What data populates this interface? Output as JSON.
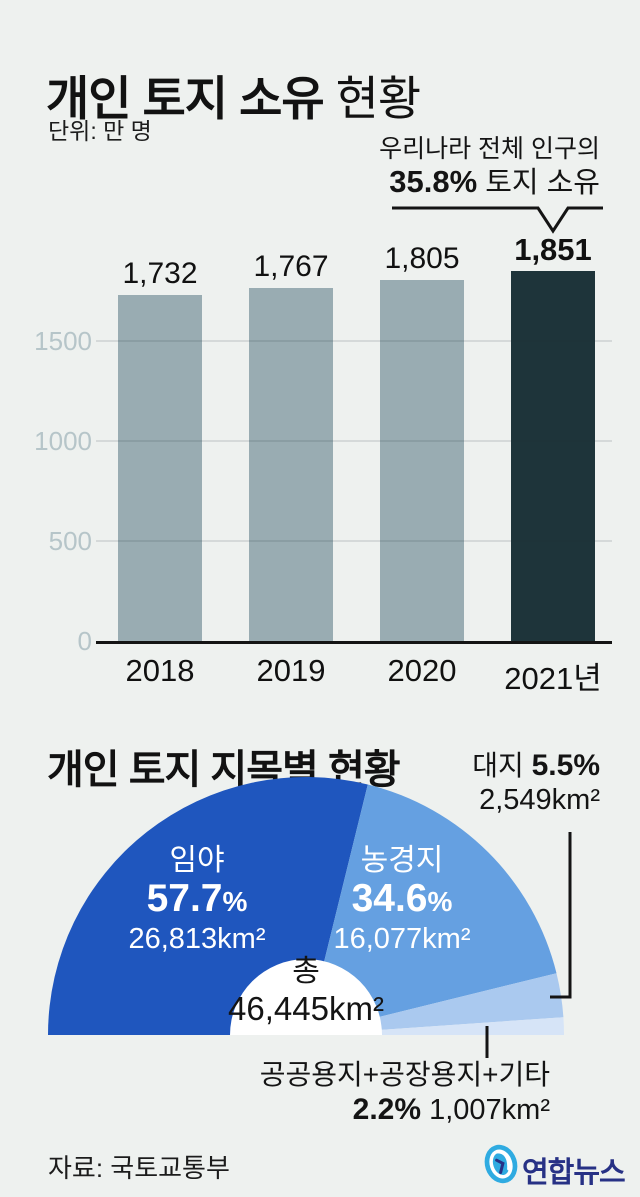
{
  "header": {
    "title_strong": "개인 토지 소유",
    "title_light": " 현황",
    "unit": "단위: 만 명"
  },
  "annotation": {
    "line1": "우리나라 전체 인구의",
    "pct": "35.8%",
    "rest": " 토지 소유"
  },
  "chart_data": [
    {
      "type": "bar",
      "title": "개인 토지 소유 현황",
      "unit": "만 명",
      "categories": [
        "2018",
        "2019",
        "2020",
        "2021년"
      ],
      "values": [
        1732,
        1767,
        1805,
        1851
      ],
      "value_labels": [
        "1,732",
        "1,767",
        "1,805",
        "1,851"
      ],
      "highlight_index": 3,
      "ylim": [
        0,
        2000
      ],
      "yticks": [
        0,
        500,
        1000,
        1500
      ],
      "grid": "on",
      "bar_color": "#99acb2",
      "highlight_color": "#1e343a",
      "annotation": "우리나라 전체 인구의 35.8% 토지 소유"
    },
    {
      "type": "pie",
      "variant": "semicircle-donut",
      "title": "개인 토지 지목별 현황",
      "total_label": "총",
      "total_value": "46,445km²",
      "slices": [
        {
          "name": "임야",
          "pct": 57.7,
          "pct_text": "57.7",
          "pct_unit": "%",
          "area": "26,813km²",
          "color": "#1f56be"
        },
        {
          "name": "농경지",
          "pct": 34.6,
          "pct_text": "34.6",
          "pct_unit": "%",
          "area": "16,077km²",
          "color": "#65a0e1"
        },
        {
          "name": "대지",
          "pct": 5.5,
          "pct_label": "5.5%",
          "area": "2,549km²",
          "color": "#aac9ef"
        },
        {
          "name": "공공용지+공장용지+기타",
          "pct": 2.2,
          "pct_label": "2.2%",
          "area": "1,007km²",
          "color": "#d6e4f7"
        }
      ]
    }
  ],
  "footer": {
    "source": "자료: 국토교통부",
    "logo": "연합뉴스"
  }
}
